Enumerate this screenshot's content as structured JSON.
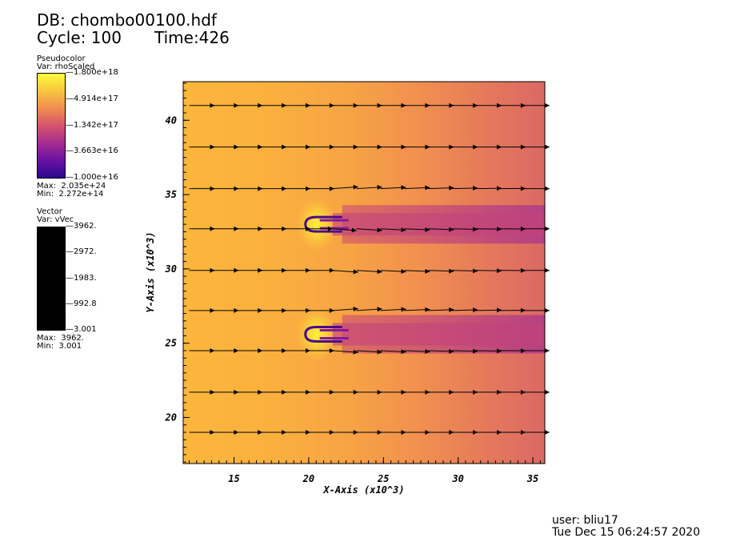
{
  "header": {
    "db_line": "DB: chombo00100.hdf",
    "cycle_line": "Cycle: 100",
    "time_line": "Time:426"
  },
  "legend_pseudo": {
    "plot_type": "Pseudocolor",
    "var_line": "Var: rhoScaled",
    "ticks": [
      "1.800e+18",
      "4.914e+17",
      "1.342e+17",
      "3.663e+16",
      "1.000e+16"
    ],
    "max_line": "Max:  2.035e+24",
    "min_line": "Min:  2.272e+14",
    "colormap": [
      "#fcfd3c",
      "#f9c440",
      "#f08d4f",
      "#d5546d",
      "#a52c8f",
      "#6a12a4",
      "#2a078f"
    ]
  },
  "legend_vector": {
    "plot_type": "Vector",
    "var_line": "Var: vVec",
    "ticks": [
      "3962.",
      "2972.",
      "1983.",
      "992.8",
      "3.001"
    ],
    "max_line": "Max:  3962.",
    "min_line": "Min:  3.001",
    "bar_color": "#000000"
  },
  "footer": {
    "user_line": "user: bliu17",
    "date_line": "Tue Dec 15 06:24:57 2020"
  },
  "chart_data": {
    "type": "heatmap",
    "title": "",
    "xlabel": "X-Axis (x10^3)",
    "ylabel": "Y-Axis (x10^3)",
    "xlim": [
      11.6,
      35.8
    ],
    "ylim": [
      16.9,
      42.6
    ],
    "xticks": [
      15,
      20,
      25,
      30,
      35
    ],
    "yticks": [
      20,
      25,
      30,
      35,
      40
    ],
    "xtick_labels": [
      "15",
      "20",
      "25",
      "30",
      "35"
    ],
    "ytick_labels": [
      "20",
      "25",
      "30",
      "35",
      "40"
    ],
    "bodies": [
      {
        "x": 20.1,
        "y": 33.0
      },
      {
        "x": 20.1,
        "y": 25.6
      }
    ],
    "vector_rows_y": [
      41.0,
      38.2,
      35.4,
      32.7,
      29.9,
      27.2,
      24.5,
      21.7,
      19.0
    ],
    "vector_cols_x": [
      12.0,
      13.6,
      15.2,
      16.8,
      18.4,
      20.0,
      21.6,
      23.2,
      24.8,
      26.4,
      28.0,
      29.6,
      31.2,
      32.8,
      34.4
    ],
    "background_field": "rhoScaled",
    "vector_field": "vVec"
  }
}
